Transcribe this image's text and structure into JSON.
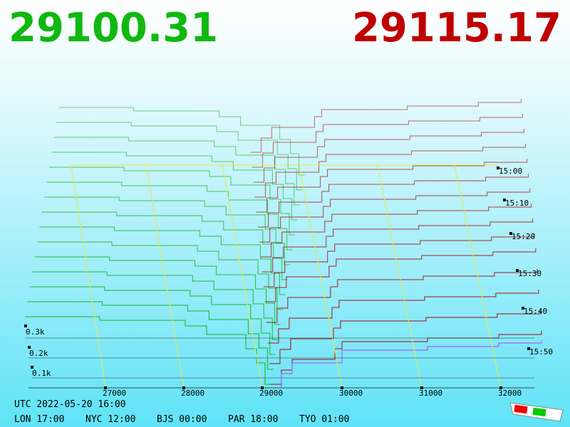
{
  "header": {
    "bid_price": "29100.31",
    "ask_price": "29115.17"
  },
  "price_axis": [
    "27000",
    "28000",
    "29000",
    "30000",
    "31000",
    "32000"
  ],
  "time_axis": [
    "15:00",
    "15:10",
    "15:20",
    "15:30",
    "15:40",
    "15:50"
  ],
  "depth_axis": [
    "0.3k",
    "0.2k",
    "0.1k"
  ],
  "footer": {
    "utc": "UTC 2022-05-20 16:00",
    "clocks": [
      "LON 17:00",
      "NYC 12:00",
      "BJS 00:00",
      "PAR 18:00",
      "TYO 01:00"
    ]
  }
}
